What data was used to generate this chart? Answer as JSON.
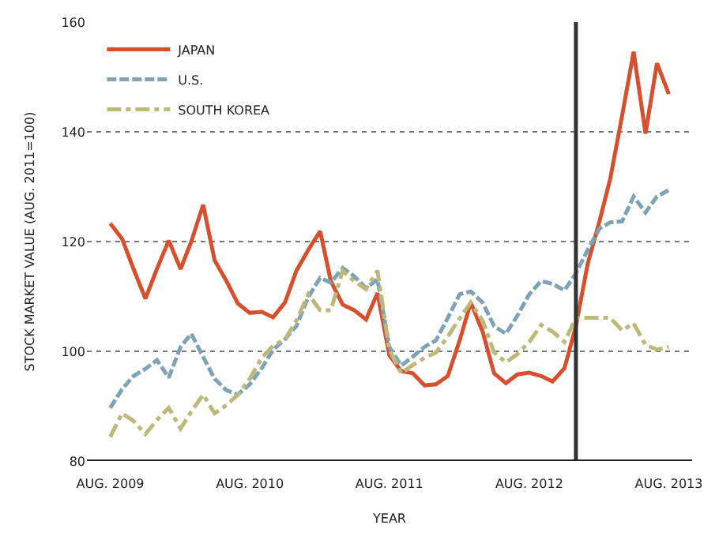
{
  "chart_data": {
    "type": "line",
    "xlabel": "YEAR",
    "ylabel": "STOCK MARKET VALUE (AUG. 2011=100)",
    "x": [
      "2009-08",
      "2009-09",
      "2009-10",
      "2009-11",
      "2009-12",
      "2010-01",
      "2010-02",
      "2010-03",
      "2010-04",
      "2010-05",
      "2010-06",
      "2010-07",
      "2010-08",
      "2010-09",
      "2010-10",
      "2010-11",
      "2010-12",
      "2011-01",
      "2011-02",
      "2011-03",
      "2011-04",
      "2011-05",
      "2011-06",
      "2011-07",
      "2011-08",
      "2011-09",
      "2011-10",
      "2011-11",
      "2011-12",
      "2012-01",
      "2012-02",
      "2012-03",
      "2012-04",
      "2012-05",
      "2012-06",
      "2012-07",
      "2012-08",
      "2012-09",
      "2012-10",
      "2012-11",
      "2012-12",
      "2013-01",
      "2013-02",
      "2013-03",
      "2013-04",
      "2013-05",
      "2013-06",
      "2013-07",
      "2013-08"
    ],
    "series": [
      {
        "name": "JAPAN",
        "color": "#d4502f",
        "line_style": "solid",
        "values": [
          123.3,
          120.5,
          115,
          109.6,
          115,
          120.2,
          115,
          120,
          126.7,
          116.6,
          112.8,
          108.7,
          107,
          107.2,
          106.2,
          108.9,
          114.7,
          118.5,
          121.9,
          112.8,
          108.5,
          107.5,
          105.8,
          110.6,
          99.3,
          96.4,
          96,
          93.8,
          94,
          95.5,
          102,
          108.9,
          103.6,
          96,
          94.2,
          95.8,
          96.1,
          95.5,
          94.5,
          96.9,
          104.6,
          116,
          123.8,
          131.5,
          143,
          154.6,
          139.7,
          152.5,
          146.9
        ]
      },
      {
        "name": "U.S.",
        "color": "#7fa3b5",
        "line_style": "dashed",
        "values": [
          89.7,
          93.1,
          95.5,
          96.8,
          98.4,
          95.2,
          100.8,
          103.2,
          99,
          95,
          92.9,
          92.1,
          94,
          96.9,
          100.3,
          102.2,
          104.6,
          109.9,
          113.4,
          112.5,
          115.2,
          113.7,
          111.5,
          113.1,
          100.8,
          97.4,
          99,
          100.8,
          102,
          106.1,
          110.4,
          110.9,
          108.9,
          104.6,
          103.2,
          106.5,
          110.4,
          112.8,
          112.3,
          111.1,
          114.2,
          118.5,
          122.4,
          123.5,
          123.7,
          128.2,
          125.3,
          128.2,
          129.4
        ]
      },
      {
        "name": "SOUTH KOREA",
        "color": "#bcb97a",
        "line_style": "dashdot",
        "values": [
          84.4,
          88.7,
          87.3,
          84.9,
          87.5,
          89.7,
          85.9,
          89,
          92.1,
          88.7,
          90.2,
          92.1,
          95,
          98.8,
          101,
          102.2,
          105.6,
          110.4,
          107.5,
          107.5,
          114.7,
          112.8,
          111.3,
          114.7,
          100.3,
          96,
          97.5,
          98.8,
          99.8,
          102.7,
          106,
          108.9,
          105.6,
          99.8,
          98,
          99.5,
          101.7,
          104.8,
          103.6,
          101.7,
          106.1,
          106.1,
          106.1,
          106.1,
          103.8,
          105.1,
          101.2,
          100.3,
          100.8
        ]
      }
    ],
    "xlim": [
      "2009-06",
      "2013-10"
    ],
    "xticks": [
      {
        "value": "2009-08",
        "label": "AUG. 2009"
      },
      {
        "value": "2010-08",
        "label": "AUG. 2010"
      },
      {
        "value": "2011-08",
        "label": "AUG. 2011"
      },
      {
        "value": "2012-08",
        "label": "AUG. 2012"
      },
      {
        "value": "2013-08",
        "label": "AUG. 2013"
      }
    ],
    "ylim": [
      80,
      160
    ],
    "yticks": [
      80,
      100,
      120,
      140,
      160
    ],
    "grid": "y",
    "legend": "top left",
    "ref_lines": [
      {
        "axis": "x",
        "value": "2012-12",
        "color": "#333333"
      }
    ]
  }
}
